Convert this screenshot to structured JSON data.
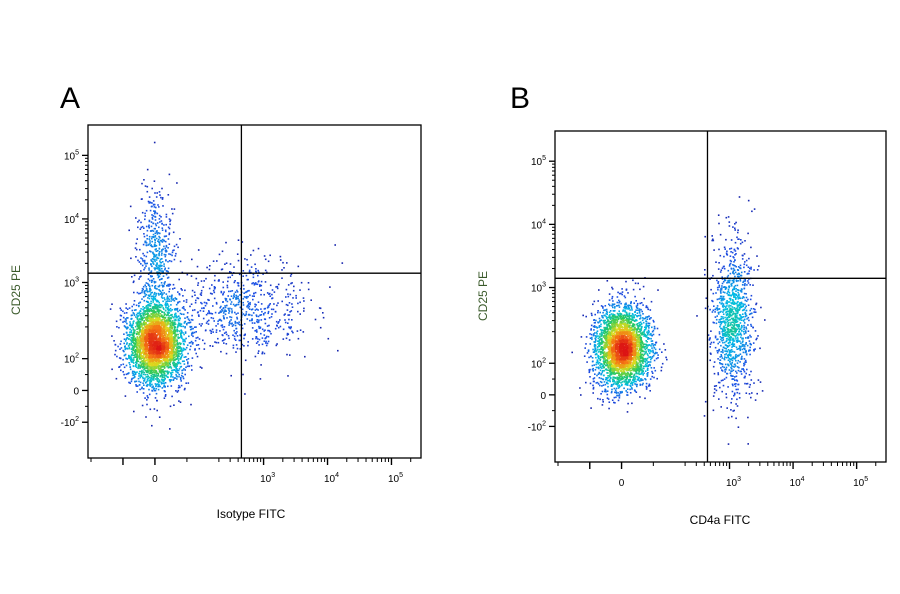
{
  "chart_data": [
    {
      "type": "scatter",
      "subtype": "flow-cytometry-density-dot-plot",
      "panel_label": "A",
      "xlabel": "Isotype FITC",
      "ylabel": "CD25 PE",
      "x_scale": "biexponential",
      "y_scale": "biexponential",
      "x_tick_labels": [
        "0",
        "10^3",
        "10^4",
        "10^5"
      ],
      "y_tick_labels": [
        "-10^2",
        "0",
        "10^2",
        "10^3",
        "10^4",
        "10^5"
      ],
      "quadrant_gate": {
        "x": 450,
        "y": 1400
      },
      "quadrant_lines_visible": true,
      "color_scale": "density: blue (low) → green → yellow → red (high)",
      "populations": [
        {
          "center": {
            "x": 0,
            "y": 150
          },
          "spread": "wide",
          "note": "main negative population, red core near x=0, y=10^2"
        },
        {
          "center": {
            "x": 0,
            "y": 2500
          },
          "spread": "narrow",
          "note": "sparse tail extending to ~10^4 on y"
        },
        {
          "center": {
            "x": 400,
            "y": 400
          },
          "spread": "medium",
          "note": "scattered events reaching ~10^3 on x"
        }
      ]
    },
    {
      "type": "scatter",
      "subtype": "flow-cytometry-density-dot-plot",
      "panel_label": "B",
      "xlabel": "CD4a FITC",
      "ylabel": "CD25 PE",
      "x_scale": "biexponential",
      "y_scale": "biexponential",
      "x_tick_labels": [
        "0",
        "10^3",
        "10^4",
        "10^5"
      ],
      "y_tick_labels": [
        "-10^2",
        "0",
        "10^2",
        "10^3",
        "10^4",
        "10^5"
      ],
      "quadrant_gate": {
        "x": 450,
        "y": 1400
      },
      "quadrant_lines_visible": true,
      "color_scale": "density: blue (low) → green → yellow → red (high)",
      "populations": [
        {
          "center": {
            "x": 0,
            "y": 150
          },
          "spread": "wide",
          "note": "CD4a-negative population, red core near x=0, y=10^2"
        },
        {
          "center": {
            "x": 1100,
            "y": 300
          },
          "spread": "narrow",
          "note": "CD4a-positive population spanning y from ~0 to ~10^4"
        }
      ]
    }
  ]
}
